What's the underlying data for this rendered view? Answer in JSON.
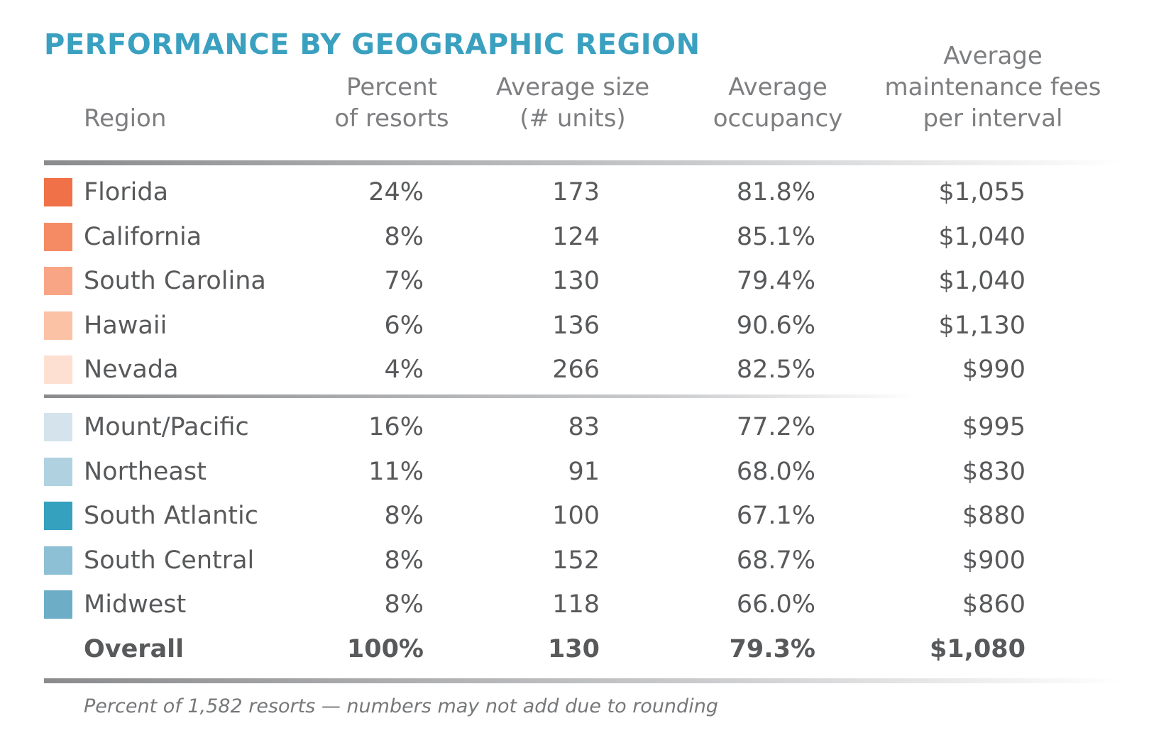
{
  "title": "PERFORMANCE BY GEOGRAPHIC REGION",
  "table": {
    "header": [
      [
        "Region"
      ],
      [
        "Percent",
        "of resorts"
      ],
      [
        "Average size",
        "(# units)"
      ],
      [
        "Average",
        "occupancy"
      ],
      [
        "Average",
        "maintenance fees",
        "per interval"
      ]
    ],
    "groups": [
      [
        {
          "color": "#f07048",
          "cells": [
            "Florida",
            "24%",
            "173",
            "81.8%",
            "$1,055"
          ]
        },
        {
          "color": "#f58b65",
          "cells": [
            "California",
            "8%",
            "124",
            "85.1%",
            "$1,040"
          ]
        },
        {
          "color": "#f8a585",
          "cells": [
            "South Carolina",
            "7%",
            "130",
            "79.4%",
            "$1,040"
          ]
        },
        {
          "color": "#fbc2a6",
          "cells": [
            "Hawaii",
            "6%",
            "136",
            "90.6%",
            "$1,130"
          ]
        },
        {
          "color": "#fde0d2",
          "cells": [
            "Nevada",
            "4%",
            "266",
            "82.5%",
            "$990"
          ]
        }
      ],
      [
        {
          "color": "#d5e4ec",
          "cells": [
            "Mount/Pacific",
            "16%",
            "83",
            "77.2%",
            "$995"
          ]
        },
        {
          "color": "#b0d1e0",
          "cells": [
            "Northeast",
            "11%",
            "91",
            "68.0%",
            "$830"
          ]
        },
        {
          "color": "#35a1bf",
          "cells": [
            "South Atlantic",
            "8%",
            "100",
            "67.1%",
            "$880"
          ]
        },
        {
          "color": "#8dbfd5",
          "cells": [
            "South Central",
            "8%",
            "152",
            "68.7%",
            "$900"
          ]
        },
        {
          "color": "#6eadc6",
          "cells": [
            "Midwest",
            "8%",
            "118",
            "66.0%",
            "$860"
          ]
        }
      ]
    ],
    "total": [
      "Overall",
      "100%",
      "130",
      "79.3%",
      "$1,080"
    ]
  },
  "footnote": "Percent of 1,582 resorts — numbers may not add due to rounding"
}
